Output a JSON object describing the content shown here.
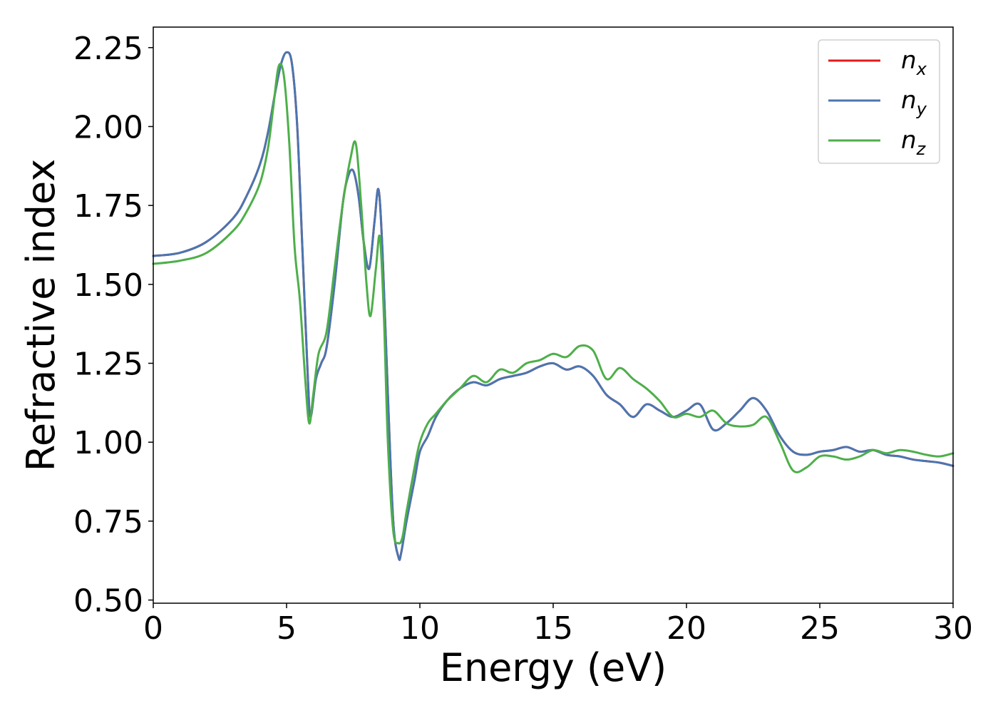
{
  "chart_data": {
    "type": "line",
    "title": "",
    "xlabel": "Energy (eV)",
    "ylabel": "Refractive index",
    "xlim": [
      0,
      30
    ],
    "ylim": [
      0.49,
      2.315
    ],
    "xticks": [
      0,
      5,
      10,
      15,
      20,
      25,
      30
    ],
    "xtick_labels": [
      "0",
      "5",
      "10",
      "15",
      "20",
      "25",
      "30"
    ],
    "yticks": [
      0.5,
      0.75,
      1.0,
      1.25,
      1.5,
      1.75,
      2.0,
      2.25
    ],
    "ytick_labels": [
      "0.50",
      "0.75",
      "1.00",
      "1.25",
      "1.50",
      "1.75",
      "2.00",
      "2.25"
    ],
    "grid": false,
    "legend_position": "top-right",
    "series": [
      {
        "name": "n_x",
        "legend_base": "n",
        "legend_sub": "x",
        "color": "#e41a1c",
        "x": [
          0,
          1,
          2,
          3,
          3.5,
          4,
          4.3,
          4.6,
          4.8,
          5.0,
          5.2,
          5.4,
          5.6,
          5.8,
          5.9,
          6.1,
          6.3,
          6.5,
          6.8,
          7.1,
          7.3,
          7.5,
          7.7,
          7.9,
          8.1,
          8.3,
          8.45,
          8.6,
          8.8,
          9.0,
          9.2,
          9.3,
          9.5,
          9.8,
          10.0,
          10.3,
          10.6,
          11,
          11.5,
          12,
          12.5,
          13,
          13.5,
          14,
          14.5,
          15,
          15.5,
          16,
          16.5,
          17,
          17.5,
          18,
          18.5,
          19,
          19.5,
          20,
          20.5,
          21,
          21.5,
          22,
          22.5,
          23,
          23.5,
          24,
          24.5,
          25,
          25.5,
          26,
          26.5,
          27,
          27.5,
          28,
          28.5,
          29,
          29.5,
          30
        ],
        "y": [
          1.59,
          1.6,
          1.635,
          1.71,
          1.78,
          1.88,
          1.98,
          2.12,
          2.2,
          2.235,
          2.2,
          2.0,
          1.6,
          1.2,
          1.08,
          1.2,
          1.25,
          1.3,
          1.5,
          1.75,
          1.84,
          1.86,
          1.78,
          1.63,
          1.55,
          1.7,
          1.8,
          1.6,
          1.15,
          0.75,
          0.635,
          0.65,
          0.75,
          0.88,
          0.97,
          1.02,
          1.08,
          1.13,
          1.17,
          1.19,
          1.18,
          1.2,
          1.21,
          1.22,
          1.24,
          1.25,
          1.23,
          1.24,
          1.21,
          1.15,
          1.12,
          1.08,
          1.12,
          1.1,
          1.08,
          1.1,
          1.12,
          1.04,
          1.06,
          1.1,
          1.14,
          1.1,
          1.02,
          0.97,
          0.96,
          0.97,
          0.975,
          0.985,
          0.97,
          0.975,
          0.96,
          0.955,
          0.945,
          0.94,
          0.935,
          0.925
        ]
      },
      {
        "name": "n_y",
        "legend_base": "n",
        "legend_sub": "y",
        "color": "#4a76b0",
        "x": [
          0,
          1,
          2,
          3,
          3.5,
          4,
          4.3,
          4.6,
          4.8,
          5.0,
          5.2,
          5.4,
          5.6,
          5.8,
          5.9,
          6.1,
          6.3,
          6.5,
          6.8,
          7.1,
          7.3,
          7.5,
          7.7,
          7.9,
          8.1,
          8.3,
          8.45,
          8.6,
          8.8,
          9.0,
          9.2,
          9.3,
          9.5,
          9.8,
          10.0,
          10.3,
          10.6,
          11,
          11.5,
          12,
          12.5,
          13,
          13.5,
          14,
          14.5,
          15,
          15.5,
          16,
          16.5,
          17,
          17.5,
          18,
          18.5,
          19,
          19.5,
          20,
          20.5,
          21,
          21.5,
          22,
          22.5,
          23,
          23.5,
          24,
          24.5,
          25,
          25.5,
          26,
          26.5,
          27,
          27.5,
          28,
          28.5,
          29,
          29.5,
          30
        ],
        "y": [
          1.59,
          1.6,
          1.635,
          1.71,
          1.78,
          1.88,
          1.98,
          2.12,
          2.2,
          2.235,
          2.2,
          2.0,
          1.6,
          1.2,
          1.08,
          1.2,
          1.25,
          1.3,
          1.5,
          1.75,
          1.84,
          1.86,
          1.78,
          1.63,
          1.55,
          1.7,
          1.8,
          1.6,
          1.15,
          0.75,
          0.635,
          0.65,
          0.75,
          0.88,
          0.97,
          1.02,
          1.08,
          1.13,
          1.17,
          1.19,
          1.18,
          1.2,
          1.21,
          1.22,
          1.24,
          1.25,
          1.23,
          1.24,
          1.21,
          1.15,
          1.12,
          1.08,
          1.12,
          1.1,
          1.08,
          1.1,
          1.12,
          1.04,
          1.06,
          1.1,
          1.14,
          1.1,
          1.02,
          0.97,
          0.96,
          0.97,
          0.975,
          0.985,
          0.97,
          0.975,
          0.96,
          0.955,
          0.945,
          0.94,
          0.935,
          0.925
        ]
      },
      {
        "name": "n_z",
        "legend_base": "n",
        "legend_sub": "z",
        "color": "#4daf4a",
        "x": [
          0,
          1,
          2,
          3,
          3.5,
          4,
          4.3,
          4.5,
          4.7,
          4.9,
          5.1,
          5.3,
          5.5,
          5.7,
          5.85,
          6.0,
          6.2,
          6.5,
          6.8,
          7.1,
          7.4,
          7.6,
          7.8,
          8.0,
          8.15,
          8.35,
          8.5,
          8.65,
          8.8,
          9.0,
          9.2,
          9.35,
          9.5,
          9.8,
          10.0,
          10.3,
          10.6,
          11,
          11.5,
          12,
          12.5,
          13,
          13.5,
          14,
          14.5,
          15,
          15.5,
          16,
          16.5,
          17,
          17.5,
          18,
          18.5,
          19,
          19.5,
          20,
          20.5,
          21,
          21.5,
          22,
          22.5,
          23,
          23.5,
          24,
          24.5,
          25,
          25.5,
          26,
          26.5,
          27,
          27.5,
          28,
          28.5,
          29,
          29.5,
          30
        ],
        "y": [
          1.565,
          1.575,
          1.6,
          1.67,
          1.73,
          1.82,
          1.93,
          2.06,
          2.19,
          2.16,
          1.95,
          1.62,
          1.45,
          1.2,
          1.06,
          1.15,
          1.28,
          1.35,
          1.55,
          1.75,
          1.9,
          1.945,
          1.75,
          1.5,
          1.4,
          1.55,
          1.65,
          1.4,
          1.0,
          0.72,
          0.68,
          0.7,
          0.78,
          0.92,
          1.0,
          1.06,
          1.09,
          1.13,
          1.17,
          1.21,
          1.19,
          1.23,
          1.22,
          1.25,
          1.26,
          1.28,
          1.27,
          1.305,
          1.29,
          1.2,
          1.235,
          1.2,
          1.17,
          1.13,
          1.08,
          1.09,
          1.08,
          1.1,
          1.06,
          1.05,
          1.055,
          1.08,
          1.0,
          0.91,
          0.92,
          0.955,
          0.955,
          0.945,
          0.955,
          0.975,
          0.965,
          0.975,
          0.97,
          0.96,
          0.955,
          0.965
        ]
      }
    ]
  }
}
